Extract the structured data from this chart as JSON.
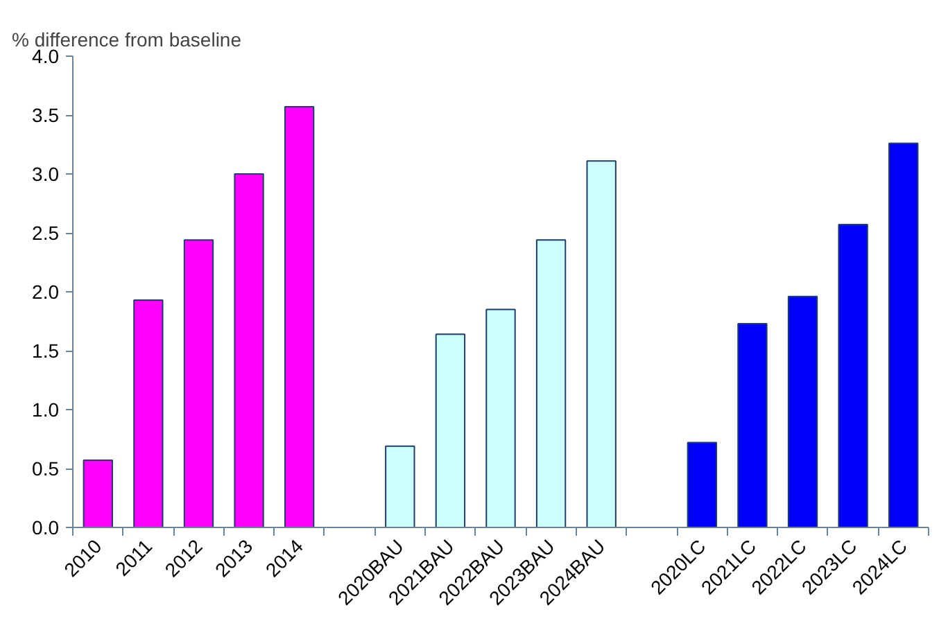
{
  "chart_data": {
    "type": "bar",
    "ylabel": "% difference from baseline",
    "categories": [
      "2010",
      "2011",
      "2012",
      "2013",
      "2014",
      null,
      "2020BAU",
      "2021BAU",
      "2022BAU",
      "2023BAU",
      "2024BAU",
      null,
      "2020LC",
      "2021LC",
      "2022LC",
      "2023LC",
      "2024LC"
    ],
    "values": [
      0.57,
      1.93,
      2.44,
      3.0,
      3.57,
      null,
      0.69,
      1.64,
      1.85,
      2.44,
      3.11,
      null,
      0.72,
      1.73,
      1.96,
      2.57,
      3.26
    ],
    "colors": [
      "#ff00ff",
      "#ff00ff",
      "#ff00ff",
      "#ff00ff",
      "#ff00ff",
      null,
      "#ccffff",
      "#ccffff",
      "#ccffff",
      "#ccffff",
      "#ccffff",
      null,
      "#0000ff",
      "#0000ff",
      "#0000ff",
      "#0000ff",
      "#0000ff"
    ],
    "ylim": [
      0,
      4.0
    ],
    "yticks": [
      {
        "value": 0,
        "label": "0.0"
      },
      0.5,
      {
        "value": 1,
        "label": "1.0"
      },
      1.5,
      {
        "value": 2,
        "label": "2.0"
      },
      2.5,
      {
        "value": 3,
        "label": "3.0"
      },
      3.5,
      {
        "value": 4,
        "label": "4.0"
      }
    ],
    "grid": false
  }
}
